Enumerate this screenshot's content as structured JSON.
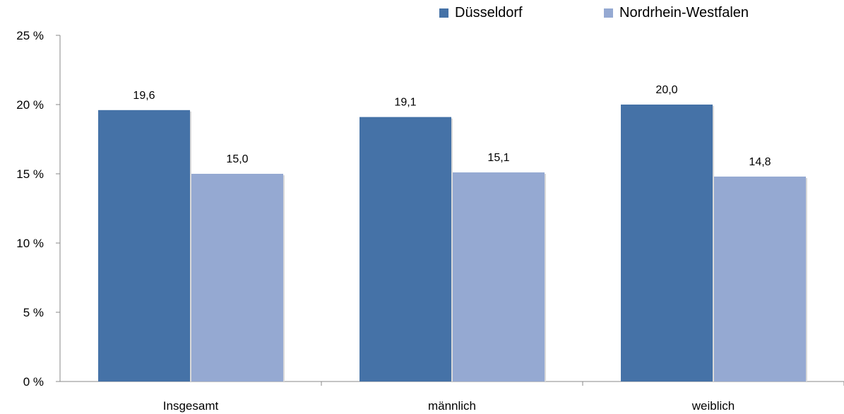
{
  "chart_data": {
    "type": "bar",
    "categories": [
      "Insgesamt",
      "männlich",
      "weiblich"
    ],
    "series": [
      {
        "name": "Düsseldorf",
        "values": [
          19.6,
          19.1,
          20.0
        ],
        "labels": [
          "19,6",
          "19,1",
          "20,0"
        ],
        "color": "#4572A7"
      },
      {
        "name": "Nordrhein-Westfalen",
        "values": [
          15.0,
          15.1,
          14.8
        ],
        "labels": [
          "15,0",
          "15,1",
          "14,8"
        ],
        "color": "#95A9D2"
      }
    ],
    "yticks": [
      0,
      5,
      10,
      15,
      20,
      25
    ],
    "yticklabels": [
      "0 %",
      "5 %",
      "10 %",
      "15 %",
      "20 %",
      "25 %"
    ],
    "ylim": [
      0,
      25
    ],
    "title": "",
    "xlabel": "",
    "ylabel": "",
    "grid": false,
    "legend_position": "top-right"
  }
}
